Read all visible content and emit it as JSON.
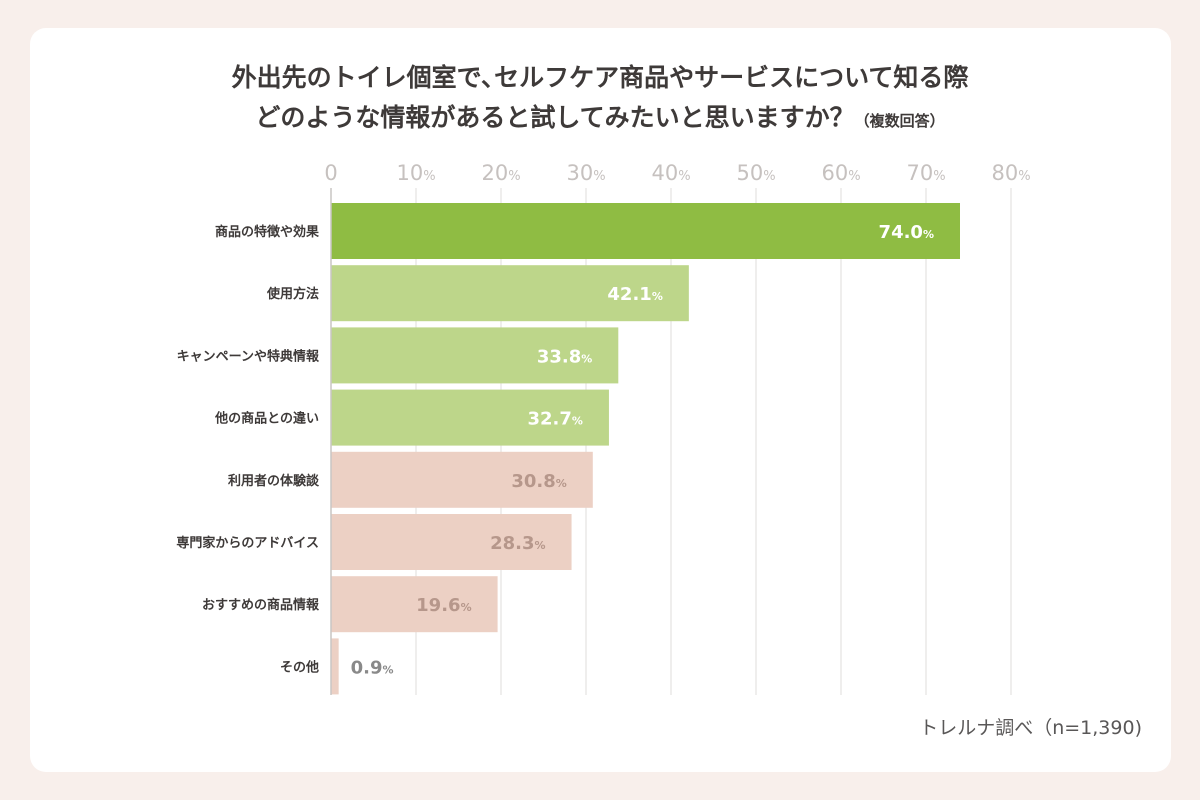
{
  "chart_data": {
    "type": "bar",
    "orientation": "horizontal",
    "title_line1": "外出先のトイレ個室で､セルフケア商品やサービスについて知る際",
    "title_line2": "どのような情報があると試してみたいと思いますか？",
    "title_note": "（複数回答）",
    "categories": [
      "商品の特徴や効果",
      "使用方法",
      "キャンペーンや特典情報",
      "他の商品との違い",
      "利用者の体験談",
      "専門家からのアドバイス",
      "おすすめの商品情報",
      "その他"
    ],
    "values": [
      74.0,
      42.1,
      33.8,
      32.7,
      30.8,
      28.3,
      19.6,
      0.9
    ],
    "value_labels": [
      "74.0",
      "42.1",
      "33.8",
      "32.7",
      "30.8",
      "28.3",
      "19.6",
      "0.9"
    ],
    "value_unit": "%",
    "x_ticks": [
      "0",
      "10",
      "20",
      "30",
      "40",
      "50",
      "60",
      "70",
      "80"
    ],
    "tick_unit": "%",
    "xlim": [
      0,
      80
    ],
    "grid": true,
    "bar_colors": [
      "#8fbc43",
      "#bdd68a",
      "#bdd68a",
      "#bdd68a",
      "#ecd0c4",
      "#ecd0c4",
      "#ecd0c4",
      "#ecd0c4"
    ],
    "label_colors": [
      "#ffffff",
      "#ffffff",
      "#ffffff",
      "#ffffff",
      "#b6978b",
      "#b6978b",
      "#b6978b",
      "#898989"
    ]
  },
  "source": "トレルナ調べ（n=1,390)"
}
